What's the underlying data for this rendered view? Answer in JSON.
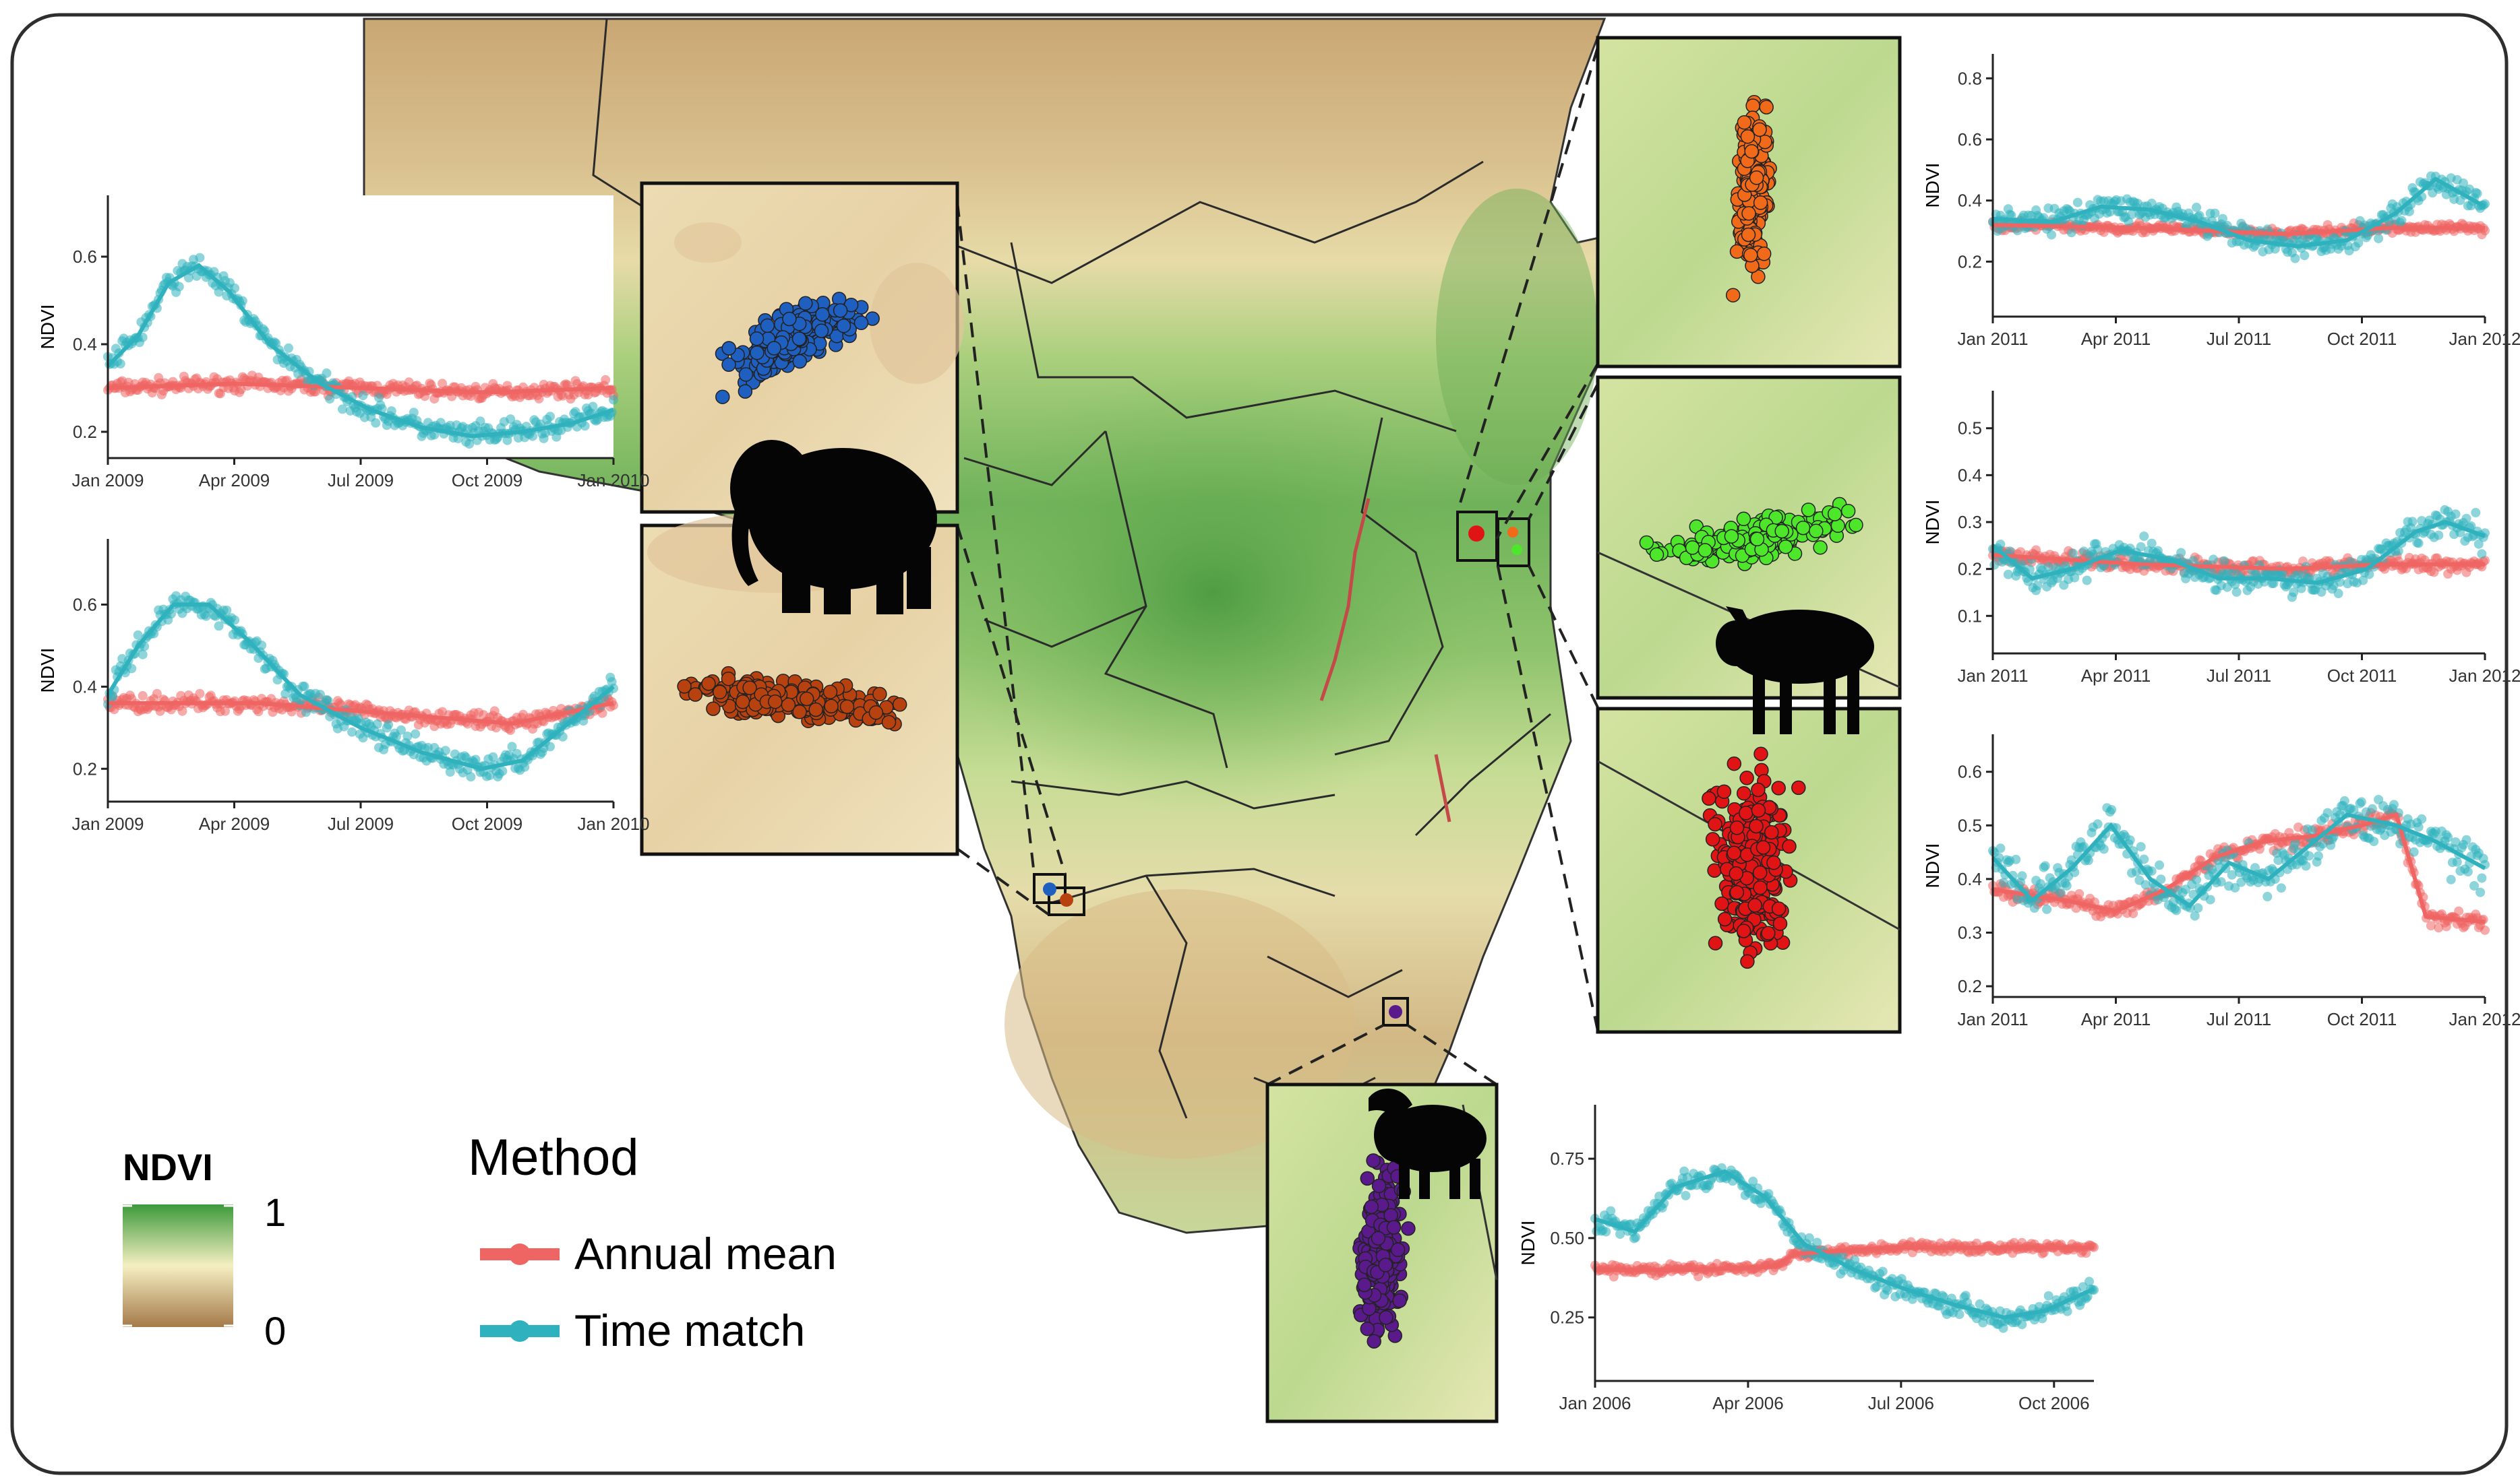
{
  "colors": {
    "annual_mean": "#ef6563",
    "time_match": "#2fb2bd",
    "ndvi_low": "#a57a4a",
    "ndvi_mid": "#f5efc2",
    "ndvi_high": "#3d9a3b",
    "elephant_blue": "#1f5fbf",
    "elephant_brown": "#b8420f",
    "wildebeest_orange": "#f06a1a",
    "wildebeest_green": "#4ee62a",
    "wildebeest_red": "#e01414",
    "buffalo_purple": "#5a1a8c"
  },
  "icons": [
    "elephant-silhouette-icon",
    "wildebeest-silhouette-icon",
    "buffalo-silhouette-icon"
  ],
  "legend": {
    "ndvi_title": "NDVI",
    "ndvi_max": "1",
    "ndvi_min": "0",
    "method_title": "Method",
    "items": [
      {
        "label": "Annual mean",
        "color": "#ef6563"
      },
      {
        "label": "Time match",
        "color": "#2fb2bd"
      }
    ]
  },
  "chart_data": [
    {
      "id": "elephant-1",
      "type": "scatter",
      "ylabel": "NDVI",
      "xticks": [
        "Jan 2009",
        "Apr 2009",
        "Jul 2009",
        "Oct 2009",
        "Jan 2010"
      ],
      "yticks": [
        0.2,
        0.4,
        0.6
      ],
      "ylim": [
        0.14,
        0.74
      ],
      "series": [
        {
          "name": "Annual mean",
          "mean": [
            [
              0,
              0.3
            ],
            [
              0.25,
              0.31
            ],
            [
              0.5,
              0.3
            ],
            [
              0.75,
              0.29
            ],
            [
              1,
              0.3
            ]
          ],
          "spread": 0.025
        },
        {
          "name": "Time match",
          "mean": [
            [
              0,
              0.35
            ],
            [
              0.06,
              0.42
            ],
            [
              0.12,
              0.54
            ],
            [
              0.18,
              0.58
            ],
            [
              0.24,
              0.52
            ],
            [
              0.32,
              0.4
            ],
            [
              0.42,
              0.31
            ],
            [
              0.52,
              0.25
            ],
            [
              0.62,
              0.21
            ],
            [
              0.72,
              0.19
            ],
            [
              0.82,
              0.2
            ],
            [
              0.92,
              0.22
            ],
            [
              1,
              0.25
            ]
          ],
          "spread": 0.04
        }
      ]
    },
    {
      "id": "elephant-2",
      "type": "scatter",
      "ylabel": "NDVI",
      "xticks": [
        "Jan 2009",
        "Apr 2009",
        "Jul 2009",
        "Oct 2009",
        "Jan 2010"
      ],
      "yticks": [
        0.2,
        0.4,
        0.6
      ],
      "ylim": [
        0.12,
        0.76
      ],
      "series": [
        {
          "name": "Annual mean",
          "mean": [
            [
              0,
              0.36
            ],
            [
              0.3,
              0.36
            ],
            [
              0.6,
              0.33
            ],
            [
              0.8,
              0.31
            ],
            [
              1,
              0.36
            ]
          ],
          "spread": 0.03
        },
        {
          "name": "Time match",
          "mean": [
            [
              0,
              0.38
            ],
            [
              0.06,
              0.5
            ],
            [
              0.13,
              0.6
            ],
            [
              0.2,
              0.6
            ],
            [
              0.28,
              0.51
            ],
            [
              0.38,
              0.38
            ],
            [
              0.5,
              0.3
            ],
            [
              0.62,
              0.24
            ],
            [
              0.74,
              0.2
            ],
            [
              0.82,
              0.22
            ],
            [
              0.9,
              0.3
            ],
            [
              1,
              0.4
            ]
          ],
          "spread": 0.045
        }
      ]
    },
    {
      "id": "wildebeest-1",
      "type": "scatter",
      "ylabel": "NDVI",
      "xticks": [
        "Jan 2011",
        "Apr 2011",
        "Jul 2011",
        "Oct 2011",
        "Jan 2012"
      ],
      "yticks": [
        0.2,
        0.4,
        0.6,
        0.8
      ],
      "ylim": [
        0.02,
        0.88
      ],
      "series": [
        {
          "name": "Annual mean",
          "mean": [
            [
              0,
              0.32
            ],
            [
              0.3,
              0.31
            ],
            [
              0.6,
              0.29
            ],
            [
              0.8,
              0.31
            ],
            [
              1,
              0.31
            ]
          ],
          "spread": 0.025
        },
        {
          "name": "Time match",
          "mean": [
            [
              0,
              0.34
            ],
            [
              0.12,
              0.33
            ],
            [
              0.22,
              0.38
            ],
            [
              0.32,
              0.37
            ],
            [
              0.42,
              0.33
            ],
            [
              0.52,
              0.27
            ],
            [
              0.62,
              0.25
            ],
            [
              0.72,
              0.27
            ],
            [
              0.82,
              0.36
            ],
            [
              0.9,
              0.47
            ],
            [
              1,
              0.38
            ]
          ],
          "spread": 0.06
        }
      ]
    },
    {
      "id": "wildebeest-2",
      "type": "scatter",
      "ylabel": "NDVI",
      "xticks": [
        "Jan 2011",
        "Apr 2011",
        "Jul 2011",
        "Oct 2011",
        "Jan 2012"
      ],
      "yticks": [
        0.1,
        0.2,
        0.3,
        0.4,
        0.5
      ],
      "ylim": [
        0.02,
        0.58
      ],
      "series": [
        {
          "name": "Annual mean",
          "mean": [
            [
              0,
              0.23
            ],
            [
              0.3,
              0.21
            ],
            [
              0.6,
              0.2
            ],
            [
              0.8,
              0.21
            ],
            [
              1,
              0.21
            ]
          ],
          "spread": 0.025
        },
        {
          "name": "Time match",
          "mean": [
            [
              0,
              0.25
            ],
            [
              0.08,
              0.18
            ],
            [
              0.16,
              0.2
            ],
            [
              0.26,
              0.24
            ],
            [
              0.36,
              0.22
            ],
            [
              0.46,
              0.18
            ],
            [
              0.56,
              0.18
            ],
            [
              0.66,
              0.17
            ],
            [
              0.76,
              0.2
            ],
            [
              0.86,
              0.28
            ],
            [
              0.92,
              0.3
            ],
            [
              1,
              0.27
            ]
          ],
          "spread": 0.05
        }
      ]
    },
    {
      "id": "wildebeest-3",
      "type": "scatter",
      "ylabel": "NDVI",
      "xticks": [
        "Jan 2011",
        "Apr 2011",
        "Jul 2011",
        "Oct 2011",
        "Jan 2012"
      ],
      "yticks": [
        0.2,
        0.3,
        0.4,
        0.5,
        0.6
      ],
      "ylim": [
        0.18,
        0.67
      ],
      "series": [
        {
          "name": "Annual mean",
          "mean": [
            [
              0,
              0.38
            ],
            [
              0.15,
              0.36
            ],
            [
              0.25,
              0.34
            ],
            [
              0.35,
              0.38
            ],
            [
              0.45,
              0.44
            ],
            [
              0.55,
              0.47
            ],
            [
              0.65,
              0.48
            ],
            [
              0.75,
              0.5
            ],
            [
              0.82,
              0.52
            ],
            [
              0.88,
              0.33
            ],
            [
              1,
              0.32
            ]
          ],
          "spread": 0.025
        },
        {
          "name": "Time match",
          "mean": [
            [
              0,
              0.44
            ],
            [
              0.08,
              0.36
            ],
            [
              0.16,
              0.42
            ],
            [
              0.24,
              0.5
            ],
            [
              0.32,
              0.4
            ],
            [
              0.4,
              0.35
            ],
            [
              0.48,
              0.43
            ],
            [
              0.56,
              0.4
            ],
            [
              0.64,
              0.46
            ],
            [
              0.72,
              0.52
            ],
            [
              0.82,
              0.5
            ],
            [
              0.9,
              0.47
            ],
            [
              1,
              0.42
            ]
          ],
          "spread": 0.06
        }
      ]
    },
    {
      "id": "buffalo-1",
      "type": "scatter",
      "ylabel": "NDVI",
      "xticks": [
        "Jan 2006",
        "Apr 2006",
        "Jul 2006",
        "Oct 2006"
      ],
      "yticks": [
        0.25,
        0.5,
        0.75
      ],
      "ylim": [
        0.05,
        0.92
      ],
      "series": [
        {
          "name": "Annual mean",
          "mean": [
            [
              0,
              0.4
            ],
            [
              0.2,
              0.4
            ],
            [
              0.36,
              0.41
            ],
            [
              0.4,
              0.45
            ],
            [
              0.6,
              0.47
            ],
            [
              0.8,
              0.47
            ],
            [
              1,
              0.47
            ]
          ],
          "spread": 0.025
        },
        {
          "name": "Time match",
          "mean": [
            [
              0,
              0.56
            ],
            [
              0.08,
              0.52
            ],
            [
              0.16,
              0.66
            ],
            [
              0.26,
              0.71
            ],
            [
              0.34,
              0.63
            ],
            [
              0.42,
              0.48
            ],
            [
              0.52,
              0.4
            ],
            [
              0.62,
              0.34
            ],
            [
              0.72,
              0.29
            ],
            [
              0.82,
              0.25
            ],
            [
              0.9,
              0.27
            ],
            [
              1,
              0.34
            ]
          ],
          "spread": 0.05
        }
      ]
    }
  ]
}
